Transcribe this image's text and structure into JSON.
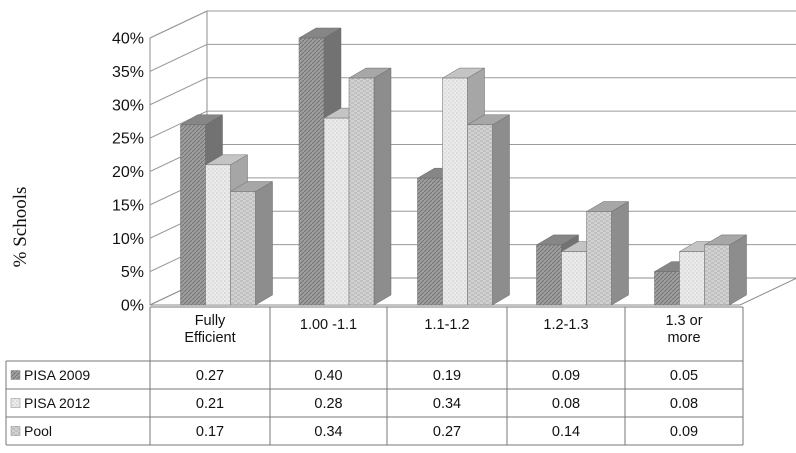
{
  "chart_data": {
    "type": "bar",
    "ylabel": "% Schools",
    "ylim": [
      0,
      0.4
    ],
    "y_ticks": [
      "0%",
      "5%",
      "10%",
      "15%",
      "20%",
      "25%",
      "30%",
      "35%",
      "40%"
    ],
    "categories": [
      "Fully Efficient",
      "1.00 -1.1",
      "1.1-1.2",
      "1.2-1.3",
      "1.3 or more"
    ],
    "category_lines": [
      [
        "Fully",
        "Efficient"
      ],
      [
        "1.00 -1.1"
      ],
      [
        "1.1-1.2"
      ],
      [
        "1.2-1.3"
      ],
      [
        "1.3 or",
        "more"
      ]
    ],
    "series": [
      {
        "name": "PISA 2009",
        "values": [
          0.27,
          0.4,
          0.19,
          0.09,
          0.05
        ],
        "color": "#9e9e9e"
      },
      {
        "name": "PISA 2012",
        "values": [
          0.21,
          0.28,
          0.34,
          0.08,
          0.08
        ],
        "color": "#e6e6e6"
      },
      {
        "name": "Pool",
        "values": [
          0.17,
          0.34,
          0.27,
          0.14,
          0.09
        ],
        "color": "#c4c4c4"
      }
    ],
    "table_values": [
      [
        "0.27",
        "0.40",
        "0.19",
        "0.09",
        "0.05"
      ],
      [
        "0.21",
        "0.28",
        "0.34",
        "0.08",
        "0.08"
      ],
      [
        "0.17",
        "0.34",
        "0.27",
        "0.14",
        "0.09"
      ]
    ],
    "grid": true,
    "legend": "data table"
  }
}
